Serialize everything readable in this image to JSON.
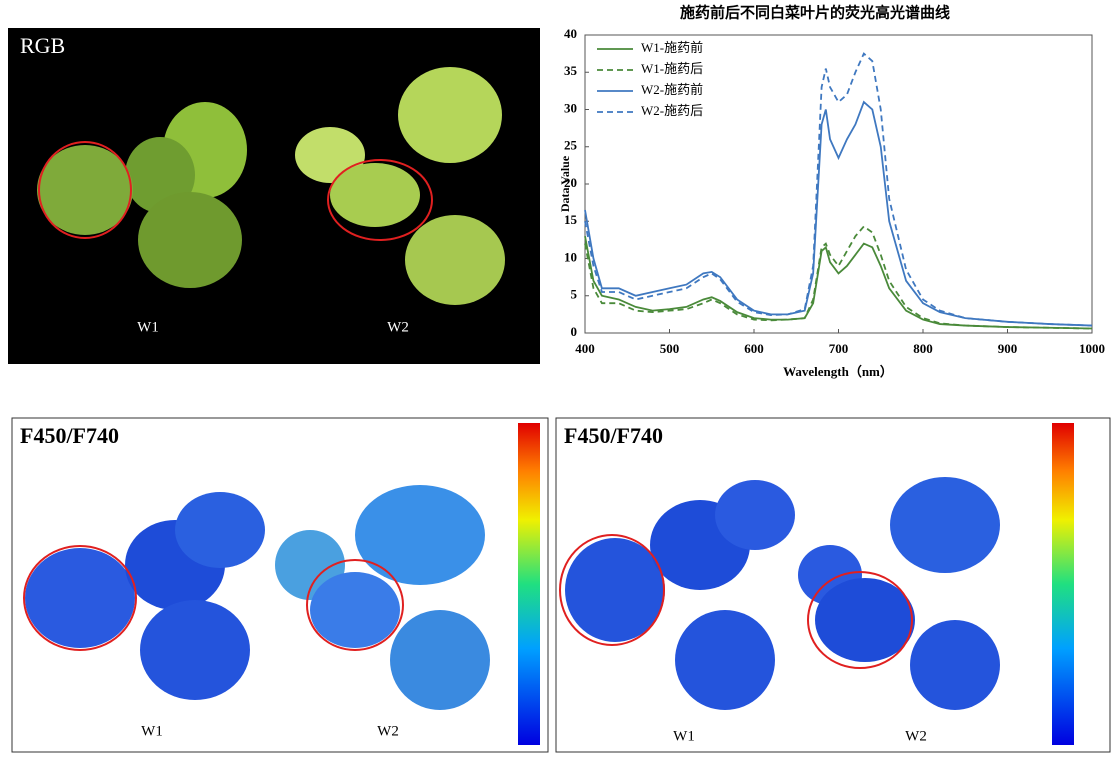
{
  "chart_data": {
    "type": "line",
    "title": "施药前后不同白菜叶片的荧光高光谱曲线",
    "x_label": "Wavelength（nm）",
    "y_label": "Data Value",
    "x": [
      400,
      410,
      420,
      440,
      460,
      480,
      500,
      520,
      540,
      550,
      560,
      580,
      600,
      620,
      640,
      660,
      670,
      680,
      685,
      690,
      700,
      710,
      720,
      730,
      740,
      750,
      760,
      780,
      800,
      820,
      850,
      900,
      950,
      1000
    ],
    "series": [
      {
        "name": "W1-施药前",
        "color": "#4a8a3a",
        "dash": false,
        "values": [
          13,
          7,
          5,
          4.5,
          3.5,
          3,
          3.2,
          3.5,
          4.5,
          4.8,
          4.3,
          2.8,
          2,
          1.8,
          1.8,
          2,
          4,
          11,
          11.5,
          9.5,
          8,
          9,
          10.5,
          12,
          11.5,
          9,
          6,
          3,
          1.8,
          1.2,
          1,
          0.8,
          0.7,
          0.6
        ]
      },
      {
        "name": "W1-施药后",
        "color": "#4a8a3a",
        "dash": true,
        "values": [
          12,
          6,
          4,
          4,
          3,
          2.8,
          3,
          3.2,
          4,
          4.5,
          4,
          2.5,
          1.8,
          1.7,
          1.8,
          2,
          4.5,
          11.5,
          12,
          10.5,
          9,
          11,
          13,
          14.3,
          13.5,
          10.5,
          7,
          3.5,
          2,
          1.3,
          1,
          0.8,
          0.7,
          0.6
        ]
      },
      {
        "name": "W2-施药前",
        "color": "#3f78c0",
        "dash": false,
        "values": [
          16.5,
          10,
          6,
          6,
          5,
          5.5,
          6,
          6.5,
          8,
          8.2,
          7.5,
          4.5,
          3,
          2.5,
          2.5,
          3,
          8,
          28,
          30,
          26,
          23.5,
          26,
          28,
          31,
          30,
          25,
          15,
          7,
          4,
          2.8,
          2,
          1.5,
          1.2,
          1
        ]
      },
      {
        "name": "W2-施药后",
        "color": "#3f78c0",
        "dash": true,
        "values": [
          15,
          9,
          5.5,
          5.5,
          4.5,
          5,
          5.5,
          6,
          7.5,
          8,
          7.2,
          4.2,
          2.8,
          2.4,
          2.5,
          3.2,
          9,
          33,
          35.5,
          33,
          31,
          32,
          35,
          37.5,
          36.5,
          30,
          18,
          8.5,
          4.5,
          3,
          2,
          1.5,
          1.2,
          1
        ]
      }
    ],
    "xlim": [
      400,
      1000
    ],
    "xticks": [
      400,
      500,
      600,
      700,
      800,
      900,
      1000
    ],
    "ylim": [
      0,
      40
    ],
    "yticks": [
      0,
      5,
      10,
      15,
      20,
      25,
      30,
      35,
      40
    ],
    "legend": "top-left"
  },
  "rgb_panel": {
    "label": "RGB",
    "samples": [
      "W1",
      "W2"
    ]
  },
  "fluor_panels": [
    {
      "label": "F450/F740",
      "samples": [
        "W1",
        "W2"
      ]
    },
    {
      "label": "F450/F740",
      "samples": [
        "W1",
        "W2"
      ]
    }
  ]
}
